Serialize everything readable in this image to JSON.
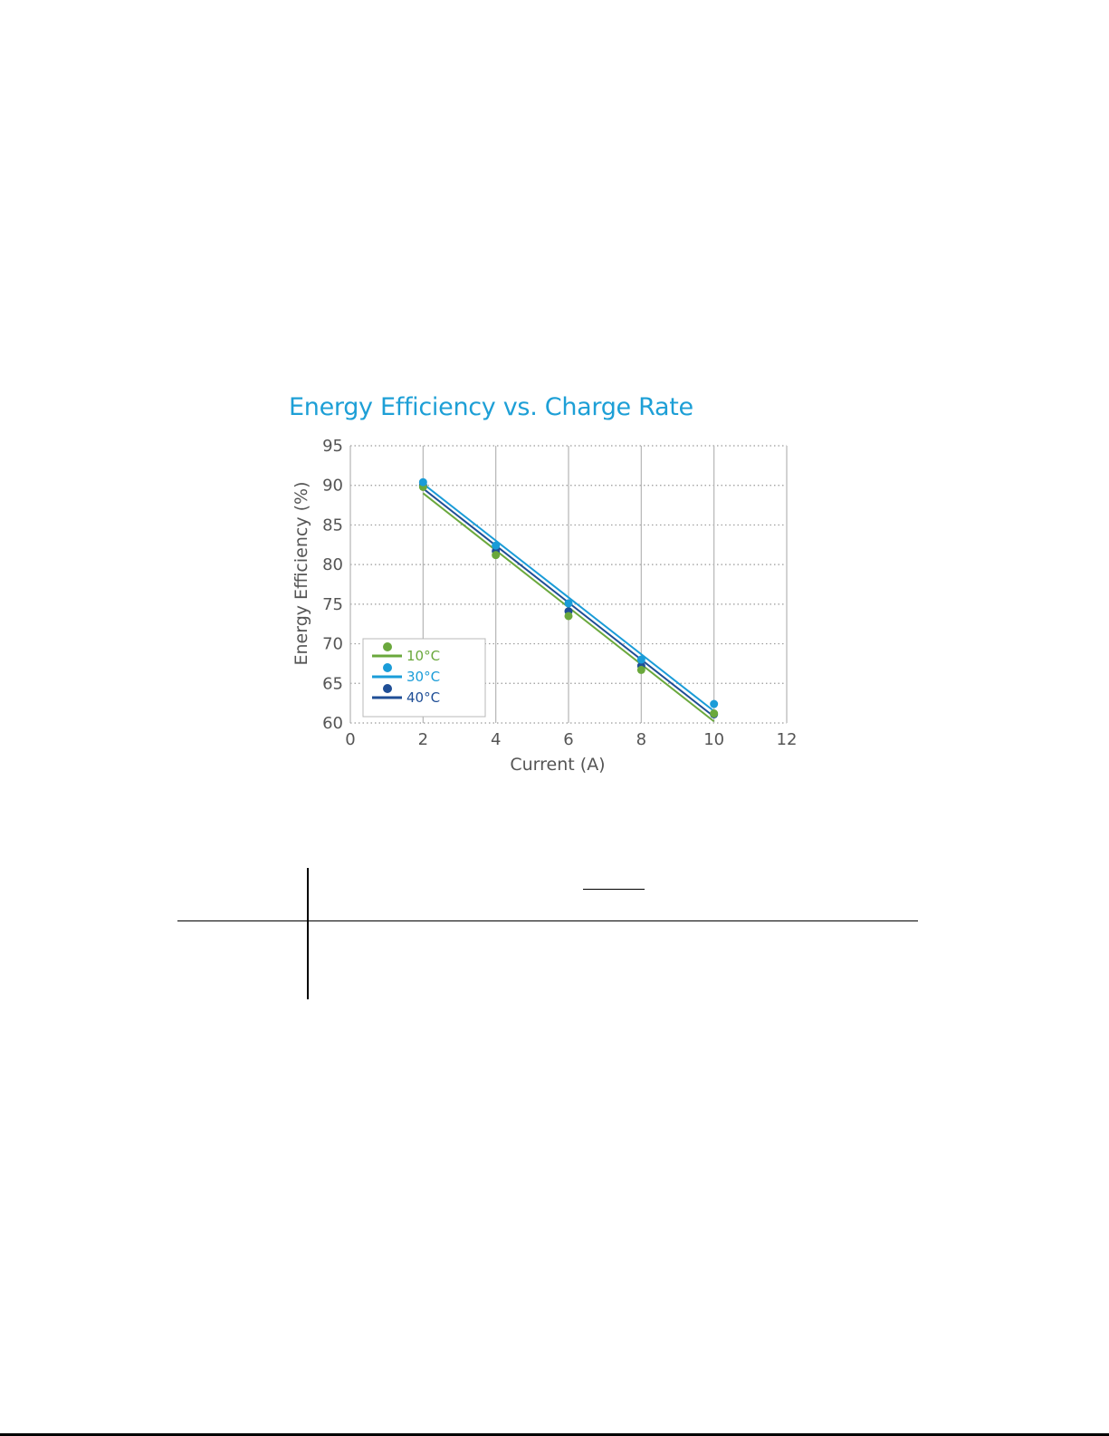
{
  "chart_data": {
    "type": "scatter",
    "title": "Energy Efficiency vs. Charge Rate",
    "xlabel": "Current (A)",
    "ylabel": "Energy Efficiency (%)",
    "xlim": [
      0,
      12
    ],
    "ylim": [
      60,
      95
    ],
    "xticks": [
      0,
      2,
      4,
      6,
      8,
      10,
      12
    ],
    "yticks": [
      60,
      65,
      70,
      75,
      80,
      85,
      90,
      95
    ],
    "grid": true,
    "legend_position": "bottom-left",
    "series": [
      {
        "name": "10°C",
        "color": "#6aa83c",
        "x": [
          2,
          4,
          6,
          8,
          10
        ],
        "values": [
          89.8,
          81.2,
          73.5,
          66.7,
          61.2
        ],
        "fit": [
          [
            2,
            89.0
          ],
          [
            10,
            60.2
          ]
        ]
      },
      {
        "name": "30°C",
        "color": "#1a9cd8",
        "x": [
          2,
          4,
          6,
          8,
          10
        ],
        "values": [
          90.4,
          82.4,
          75.1,
          68.0,
          62.4
        ],
        "fit": [
          [
            2,
            90.2
          ],
          [
            10,
            61.5
          ]
        ]
      },
      {
        "name": "40°C",
        "color": "#1f4e96",
        "x": [
          2,
          4,
          6,
          8,
          10
        ],
        "values": [
          90.0,
          81.7,
          74.1,
          67.2,
          61.1
        ],
        "fit": [
          [
            2,
            89.6
          ],
          [
            10,
            60.8
          ]
        ]
      }
    ]
  }
}
